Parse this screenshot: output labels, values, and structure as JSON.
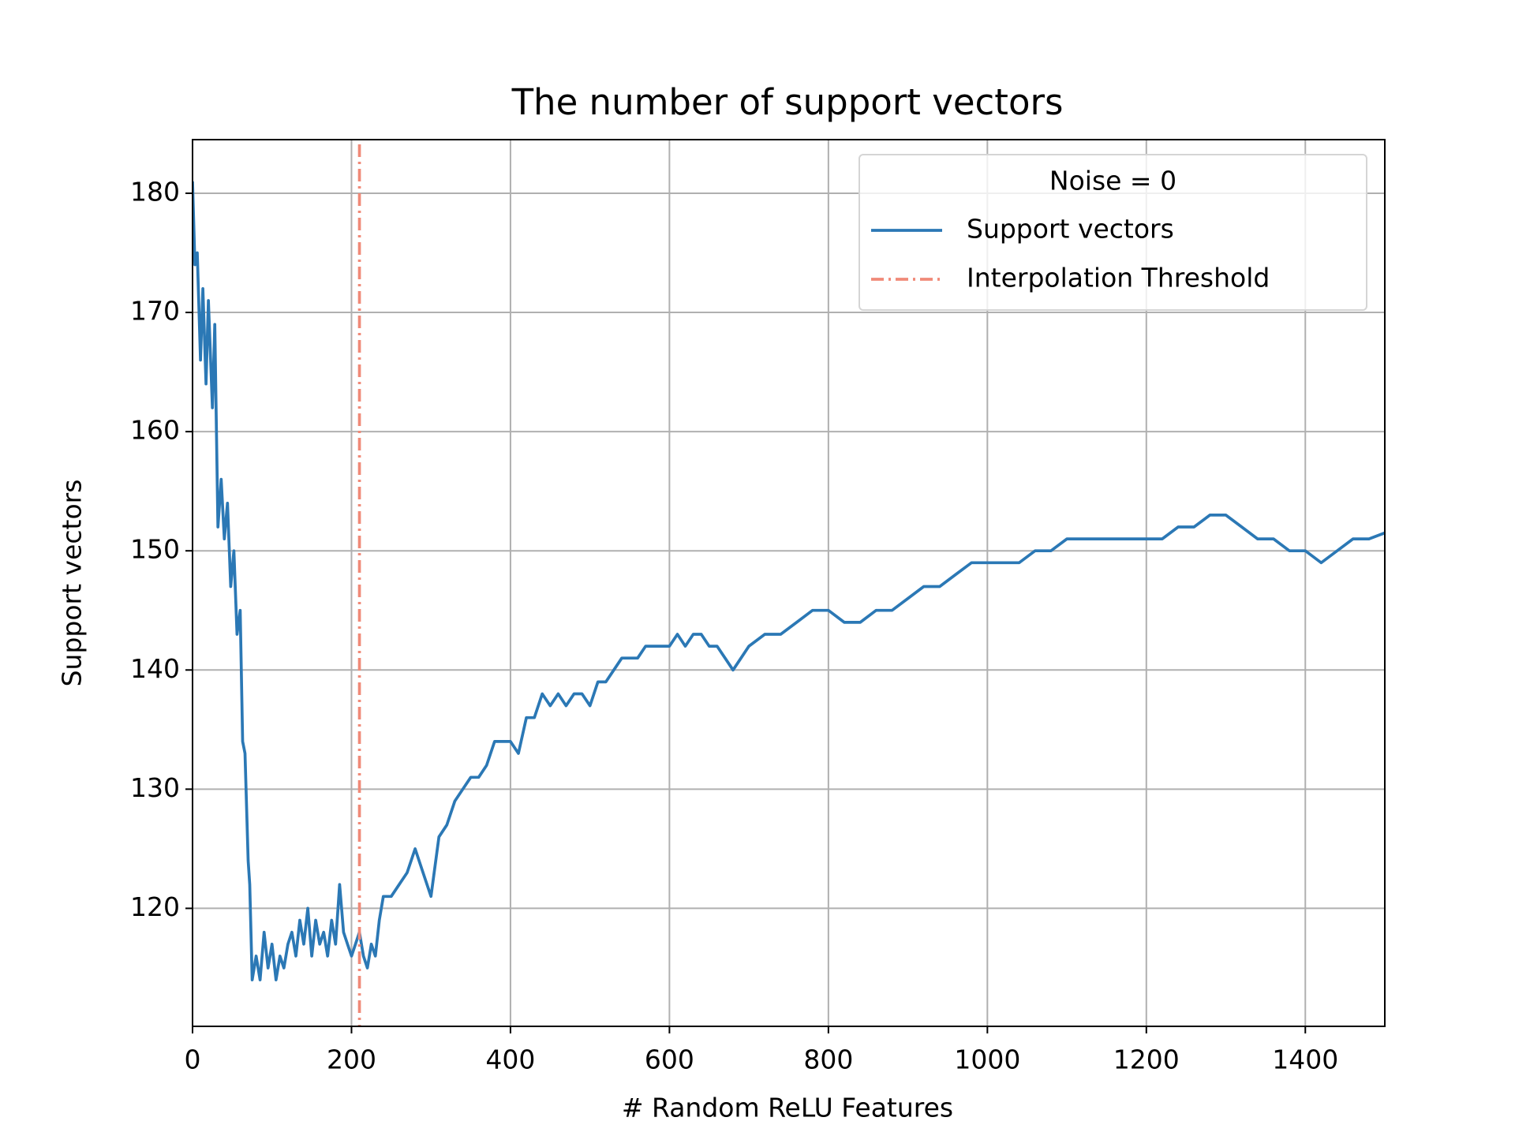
{
  "chart_data": {
    "type": "line",
    "title": "The number of support vectors",
    "xlabel": "# Random ReLU Features",
    "ylabel": "Support vectors",
    "legend_title": "Noise = 0",
    "legend": "upper right",
    "grid": true,
    "xlim": [
      0,
      1500
    ],
    "ylim": [
      110.1,
      184.5
    ],
    "xticks": [
      0,
      200,
      400,
      600,
      800,
      1000,
      1200,
      1400
    ],
    "yticks": [
      120,
      130,
      140,
      150,
      160,
      170,
      180
    ],
    "series": [
      {
        "name": "Support vectors",
        "color": "#2b78b5",
        "x": [
          0,
          3,
          6,
          10,
          13,
          17,
          20,
          25,
          28,
          32,
          36,
          40,
          44,
          48,
          52,
          56,
          60,
          63,
          66,
          70,
          72,
          75,
          80,
          85,
          90,
          95,
          100,
          105,
          110,
          115,
          120,
          125,
          130,
          135,
          140,
          145,
          150,
          155,
          160,
          165,
          170,
          175,
          180,
          185,
          190,
          195,
          200,
          205,
          210,
          215,
          220,
          225,
          230,
          235,
          240,
          250,
          260,
          270,
          280,
          290,
          300,
          310,
          320,
          330,
          340,
          350,
          360,
          370,
          380,
          390,
          400,
          410,
          420,
          430,
          440,
          450,
          460,
          470,
          480,
          490,
          500,
          510,
          520,
          530,
          540,
          550,
          560,
          570,
          580,
          590,
          600,
          610,
          620,
          630,
          640,
          650,
          660,
          670,
          680,
          690,
          700,
          720,
          740,
          760,
          780,
          800,
          820,
          840,
          860,
          880,
          900,
          920,
          940,
          960,
          980,
          1000,
          1020,
          1040,
          1060,
          1080,
          1100,
          1120,
          1140,
          1160,
          1180,
          1200,
          1220,
          1240,
          1260,
          1280,
          1300,
          1320,
          1340,
          1360,
          1380,
          1400,
          1420,
          1440,
          1460,
          1480,
          1500
        ],
        "values": [
          181,
          174,
          175,
          166,
          172,
          164,
          171,
          162,
          169,
          152,
          156,
          151,
          154,
          147,
          150,
          143,
          145,
          134,
          133,
          124,
          122,
          114,
          116,
          114,
          118,
          115,
          117,
          114,
          116,
          115,
          117,
          118,
          116,
          119,
          117,
          120,
          116,
          119,
          117,
          118,
          116,
          119,
          117,
          122,
          118,
          117,
          116,
          117,
          118,
          116,
          115,
          117,
          116,
          119,
          121,
          121,
          122,
          123,
          125,
          123,
          121,
          126,
          127,
          129,
          130,
          131,
          131,
          132,
          134,
          134,
          134,
          133,
          136,
          136,
          138,
          137,
          138,
          137,
          138,
          138,
          137,
          139,
          139,
          140,
          141,
          141,
          141,
          142,
          142,
          142,
          142,
          143,
          142,
          143,
          143,
          142,
          142,
          141,
          140,
          141,
          142,
          143,
          143,
          144,
          145,
          145,
          144,
          144,
          145,
          145,
          146,
          147,
          147,
          148,
          149,
          149,
          149,
          149,
          150,
          150,
          151,
          151,
          151,
          151,
          151,
          151,
          151,
          152,
          152,
          153,
          153,
          152,
          151,
          151,
          150,
          150,
          149,
          150,
          151,
          151,
          151.5
        ]
      }
    ],
    "threshold": {
      "name": "Interpolation Threshold",
      "color": "#f08a78",
      "x": 210
    }
  }
}
